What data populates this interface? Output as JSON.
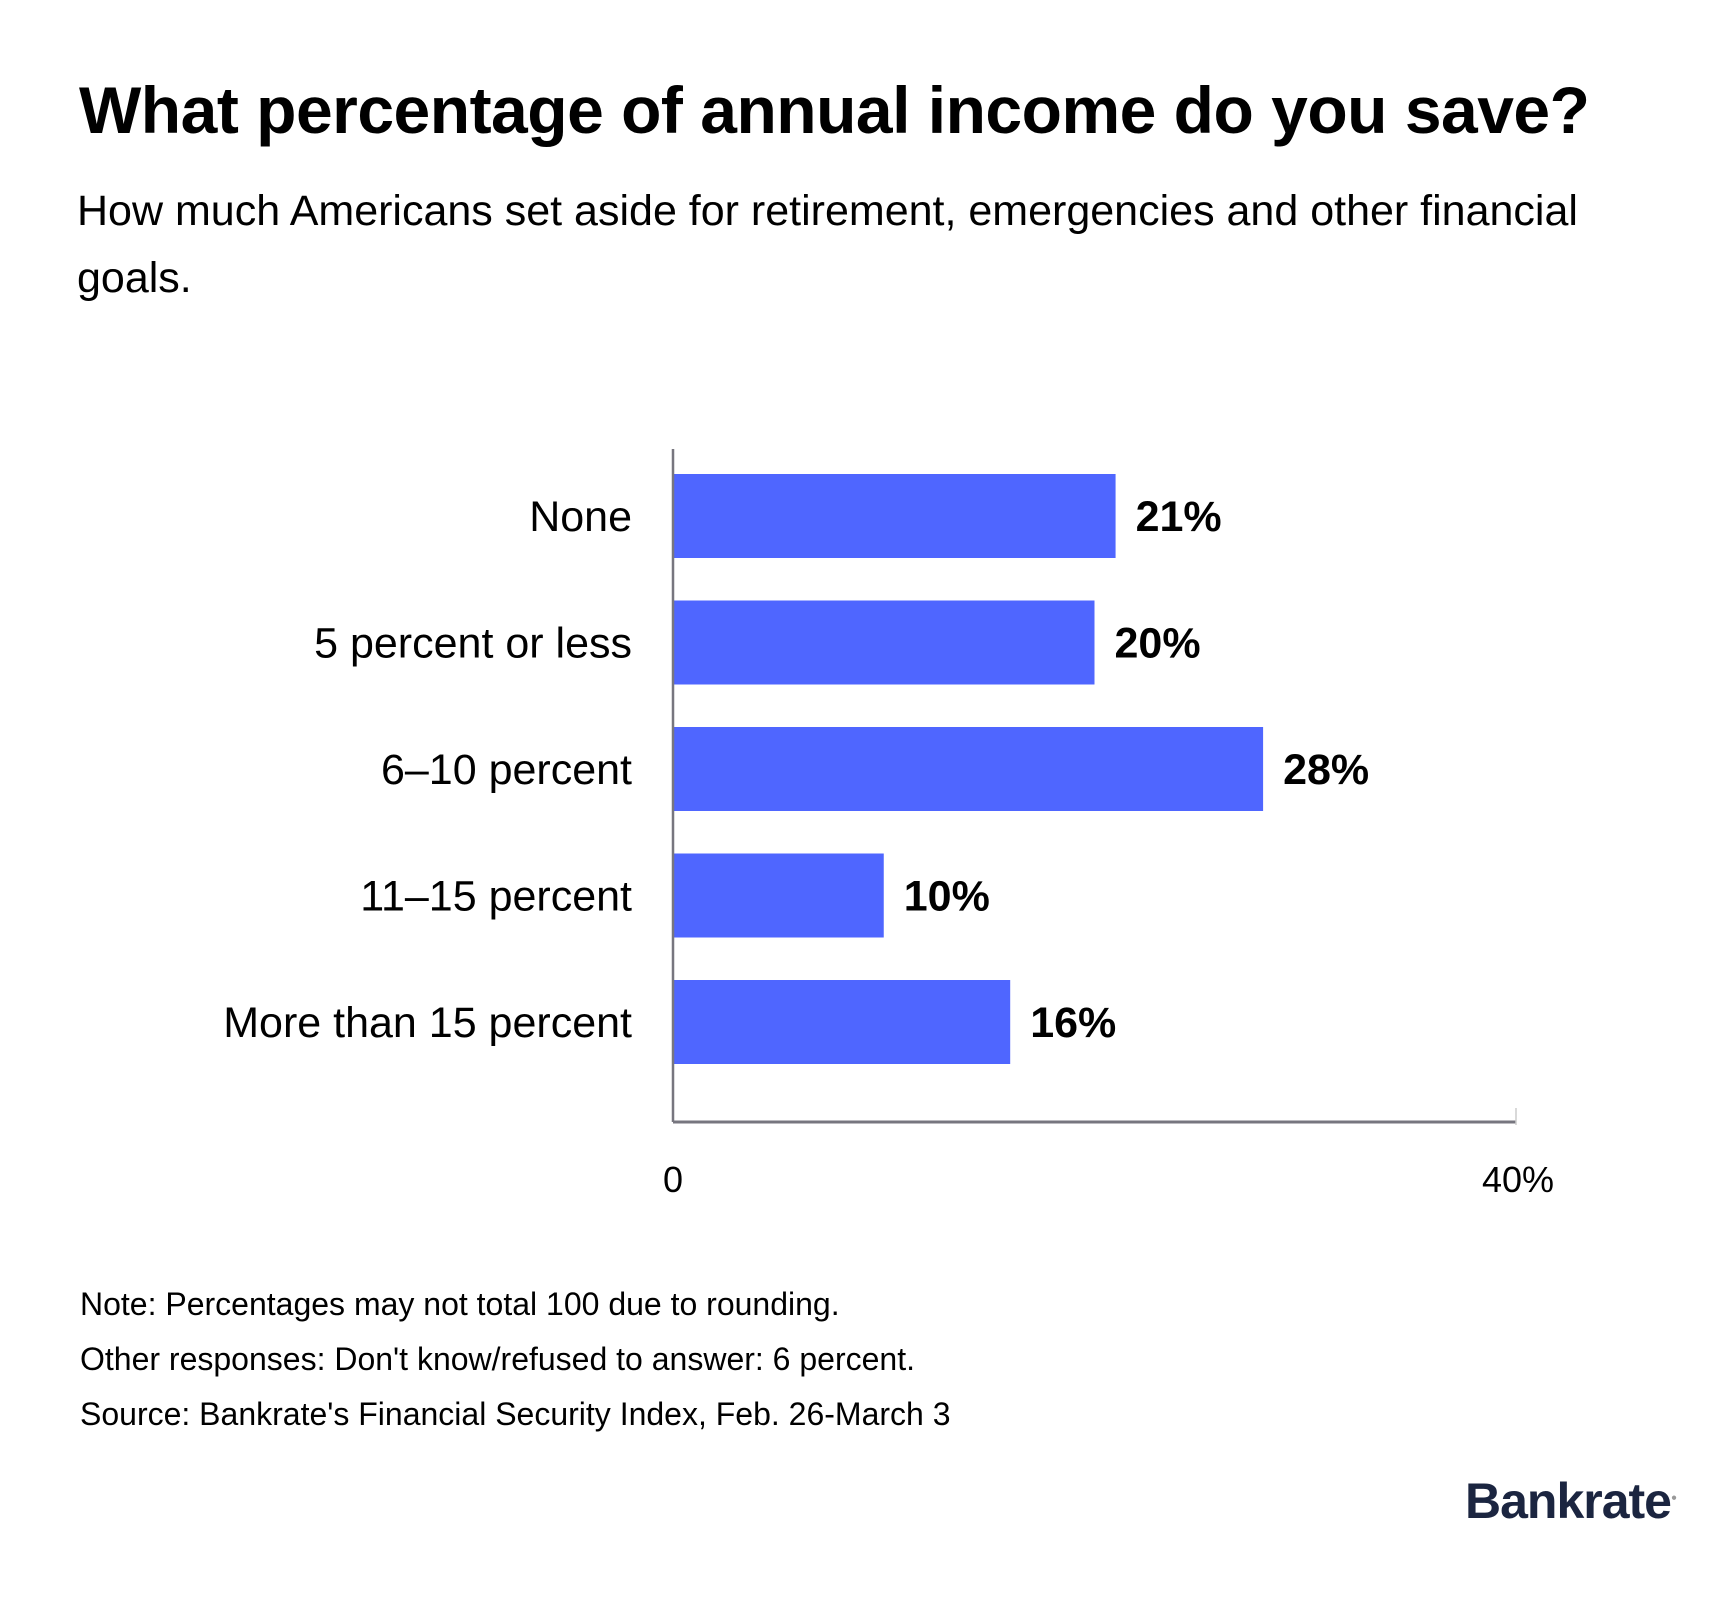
{
  "chart_data": {
    "type": "bar",
    "orientation": "horizontal",
    "title": "What percentage of annual income do you save?",
    "subtitle": "How much Americans set aside for retirement, emergencies and other financial goals.",
    "categories": [
      "None",
      "5 percent or less",
      "6–10 percent",
      "11–15 percent",
      "More than 15 percent"
    ],
    "values": [
      21,
      20,
      28,
      10,
      16
    ],
    "data_labels": [
      "21%",
      "20%",
      "28%",
      "10%",
      "16%"
    ],
    "xlim": [
      0,
      40
    ],
    "x_ticks": [
      "0",
      "40%"
    ],
    "xlabel": "",
    "ylabel": "",
    "grid": false,
    "bar_color": "#4f66ff"
  },
  "notes": [
    "Note: Percentages may not total 100 due to rounding.",
    "Other responses: Don't know/refused to answer: 6 percent.",
    "Source: Bankrate's Financial Security Index, Feb. 26-March 3"
  ],
  "logo": "Bankrate"
}
